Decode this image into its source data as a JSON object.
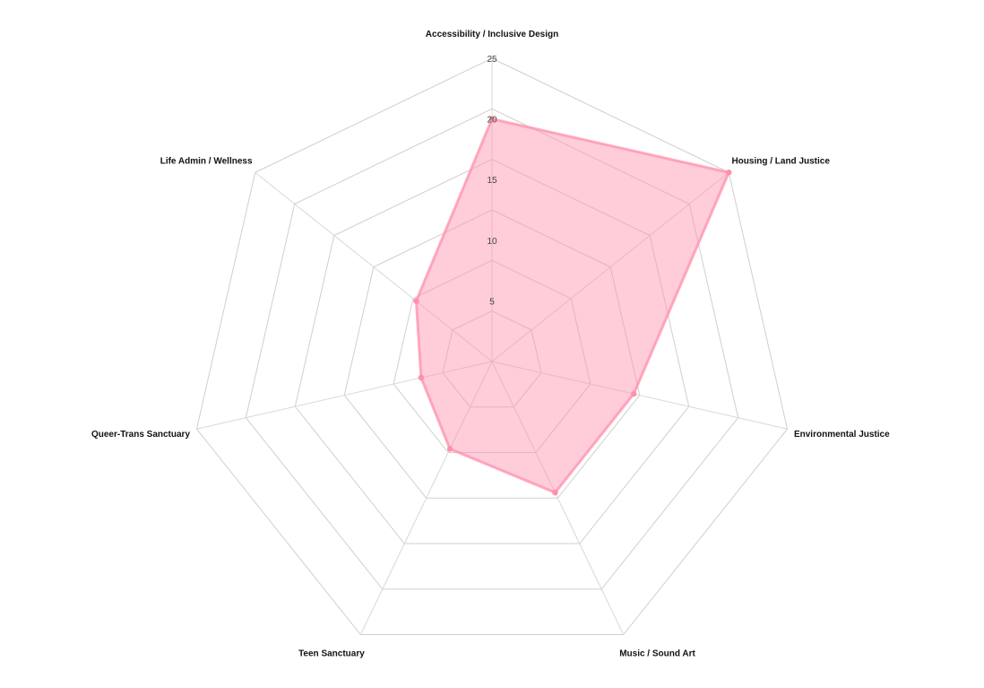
{
  "chart_data": {
    "type": "radar",
    "title": "",
    "axes": [
      "Accessibility / Inclusive Design",
      "Housing / Land Justice",
      "Environmental Justice",
      "Music / Sound Art",
      "Teen Sanctuary",
      "Queer-Trans Sanctuary",
      "Life Admin / Wellness"
    ],
    "rmax": 25,
    "ticks": [
      5,
      10,
      15,
      20,
      25
    ],
    "grid": true,
    "legend": "none",
    "series": [
      {
        "values": [
          20,
          25,
          12,
          12,
          8,
          6,
          8
        ],
        "color": "#ff8fab",
        "fill_opacity": 0.45
      }
    ]
  }
}
